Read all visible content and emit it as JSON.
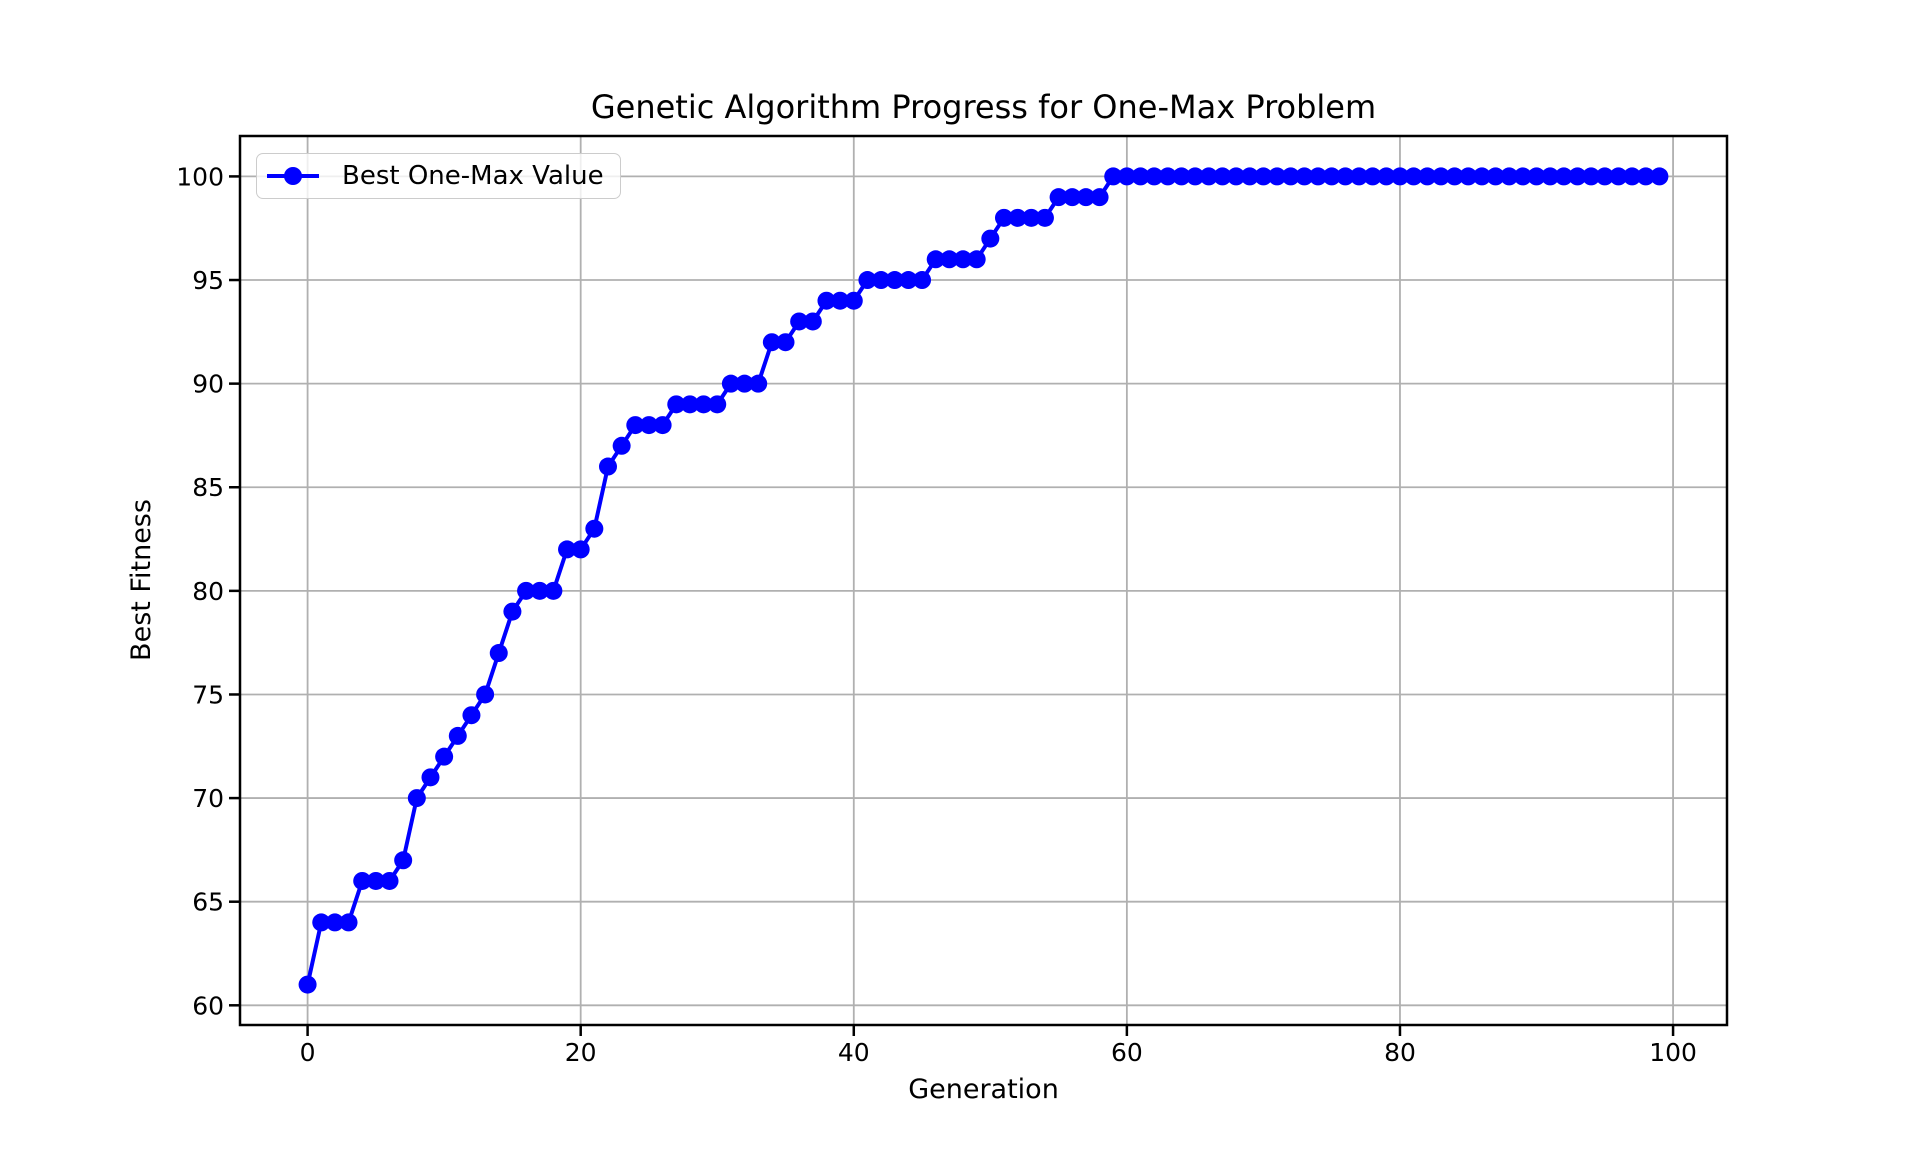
{
  "chart_data": {
    "type": "line",
    "title": "Genetic Algorithm Progress for One-Max Problem",
    "xlabel": "Generation",
    "ylabel": "Best Fitness",
    "legend_entries": [
      "Best One-Max Value"
    ],
    "legend_position": "upper left",
    "grid": true,
    "line_color": "#0000ff",
    "grid_color": "#b0b0b0",
    "marker": "o",
    "x_ticks": [
      0,
      20,
      40,
      60,
      80,
      100
    ],
    "y_ticks": [
      60,
      65,
      70,
      75,
      80,
      85,
      90,
      95,
      100
    ],
    "xlim": [
      -4.95,
      103.95
    ],
    "ylim": [
      59.05,
      101.95
    ],
    "series": [
      {
        "name": "Best One-Max Value",
        "x": [
          0,
          1,
          2,
          3,
          4,
          5,
          6,
          7,
          8,
          9,
          10,
          11,
          12,
          13,
          14,
          15,
          16,
          17,
          18,
          19,
          20,
          21,
          22,
          23,
          24,
          25,
          26,
          27,
          28,
          29,
          30,
          31,
          32,
          33,
          34,
          35,
          36,
          37,
          38,
          39,
          40,
          41,
          42,
          43,
          44,
          45,
          46,
          47,
          48,
          49,
          50,
          51,
          52,
          53,
          54,
          55,
          56,
          57,
          58,
          59,
          60,
          61,
          62,
          63,
          64,
          65,
          66,
          67,
          68,
          69,
          70,
          71,
          72,
          73,
          74,
          75,
          76,
          77,
          78,
          79,
          80,
          81,
          82,
          83,
          84,
          85,
          86,
          87,
          88,
          89,
          90,
          91,
          92,
          93,
          94,
          95,
          96,
          97,
          98,
          99
        ],
        "values": [
          61,
          64,
          64,
          64,
          66,
          66,
          66,
          67,
          70,
          71,
          72,
          73,
          74,
          75,
          77,
          79,
          80,
          80,
          80,
          82,
          82,
          83,
          86,
          87,
          88,
          88,
          88,
          89,
          89,
          89,
          89,
          90,
          90,
          90,
          92,
          92,
          93,
          93,
          94,
          94,
          94,
          95,
          95,
          95,
          95,
          95,
          96,
          96,
          96,
          96,
          97,
          98,
          98,
          98,
          98,
          99,
          99,
          99,
          99,
          100,
          100,
          100,
          100,
          100,
          100,
          100,
          100,
          100,
          100,
          100,
          100,
          100,
          100,
          100,
          100,
          100,
          100,
          100,
          100,
          100,
          100,
          100,
          100,
          100,
          100,
          100,
          100,
          100,
          100,
          100,
          100,
          100,
          100,
          100,
          100,
          100,
          100,
          100,
          100,
          100
        ]
      }
    ]
  }
}
